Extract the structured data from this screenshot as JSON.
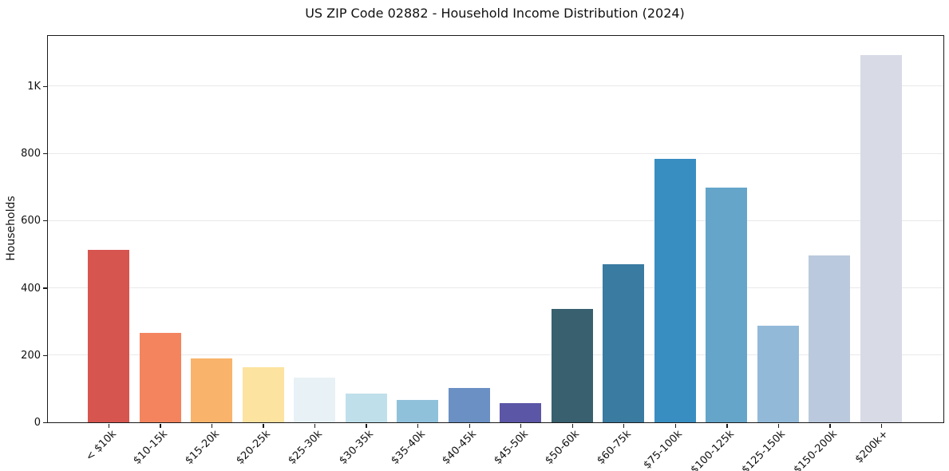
{
  "window": {
    "title": "US ZIP Code 02882 - Household Income Distribution (2024)"
  },
  "chart_data": {
    "type": "bar",
    "title": "US ZIP Code 02882 - Household Income Distribution (2024)",
    "xlabel": "",
    "ylabel": "Households",
    "categories": [
      "< $10k",
      "$10-15k",
      "$15-20k",
      "$20-25k",
      "$25-30k",
      "$30-35k",
      "$35-40k",
      "$40-45k",
      "$45-50k",
      "$50-60k",
      "$60-75k",
      "$75-100k",
      "$100-125k",
      "$125-150k",
      "$150-200k",
      "$200k+"
    ],
    "values": [
      512,
      267,
      189,
      164,
      133,
      85,
      66,
      101,
      58,
      336,
      471,
      783,
      697,
      287,
      497,
      1092
    ],
    "bar_colors": [
      "#d7554f",
      "#f4845e",
      "#f9b36a",
      "#fce3a0",
      "#e7f1f6",
      "#bfe0eb",
      "#90c1db",
      "#6b90c4",
      "#5b56a6",
      "#38606f",
      "#3a7ba1",
      "#398ec1",
      "#64a5c9",
      "#93b9d8",
      "#bac9dd",
      "#d8dae6"
    ],
    "yticks": {
      "values": [
        0,
        200,
        400,
        600,
        800,
        1000
      ],
      "labels": [
        "0",
        "200",
        "400",
        "600",
        "800",
        "1K"
      ]
    },
    "ylim": [
      0,
      1149
    ],
    "grid": "horizontal",
    "gridline_color": "#e9e9e9",
    "legend": "none",
    "background": "#ffffff",
    "spine_color": "#1a1a1a",
    "text_color": "#111111"
  }
}
